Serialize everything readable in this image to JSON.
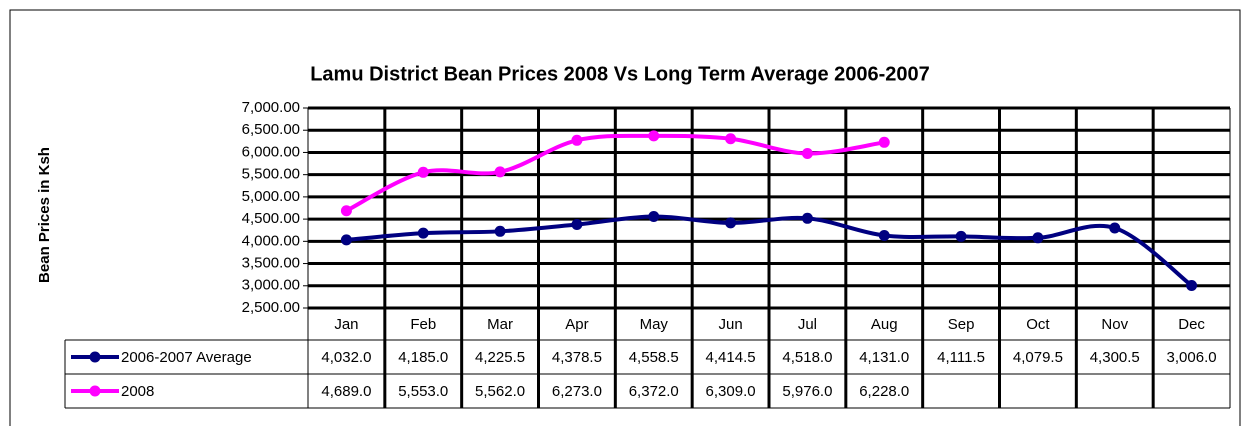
{
  "chart_data": {
    "type": "line",
    "title": "Lamu District Bean Prices 2008 Vs Long Term Average 2006-2007",
    "y_label": "Bean Prices in Ksh",
    "categories": [
      "Jan",
      "Feb",
      "Mar",
      "Apr",
      "May",
      "Jun",
      "Jul",
      "Aug",
      "Sep",
      "Oct",
      "Nov",
      "Dec"
    ],
    "series": [
      {
        "name": "2006-2007 Average",
        "color": "#000080",
        "values": [
          4032,
          4185,
          4225.5,
          4378.5,
          4558.5,
          4414.5,
          4518,
          4131,
          4111.5,
          4079.5,
          4300.5,
          3006
        ],
        "value_labels": [
          "4,032.0",
          "4,185.0",
          "4,225.5",
          "4,378.5",
          "4,558.5",
          "4,414.5",
          "4,518.0",
          "4,131.0",
          "4,111.5",
          "4,079.5",
          "4,300.5",
          "3,006.0"
        ]
      },
      {
        "name": "2008",
        "color": "#ff00ff",
        "values": [
          4689,
          5553,
          5562,
          6273,
          6372,
          6309,
          5976,
          6228,
          null,
          null,
          null,
          null
        ],
        "value_labels": [
          "4,689.0",
          "5,553.0",
          "5,562.0",
          "6,273.0",
          "6,372.0",
          "6,309.0",
          "5,976.0",
          "6,228.0",
          null,
          null,
          null,
          null
        ]
      }
    ],
    "ylim": [
      2500,
      7000
    ],
    "yticks": [
      {
        "value": 2500,
        "label": "2,500.00"
      },
      {
        "value": 3000,
        "label": "3,000.00"
      },
      {
        "value": 3500,
        "label": "3,500.00"
      },
      {
        "value": 4000,
        "label": "4,000.00"
      },
      {
        "value": 4500,
        "label": "4,500.00"
      },
      {
        "value": 5000,
        "label": "5,000.00"
      },
      {
        "value": 5500,
        "label": "5,500.00"
      },
      {
        "value": 6000,
        "label": "6,000.00"
      },
      {
        "value": 6500,
        "label": "6,500.00"
      },
      {
        "value": 7000,
        "label": "7,000.00"
      }
    ],
    "grid": true
  }
}
